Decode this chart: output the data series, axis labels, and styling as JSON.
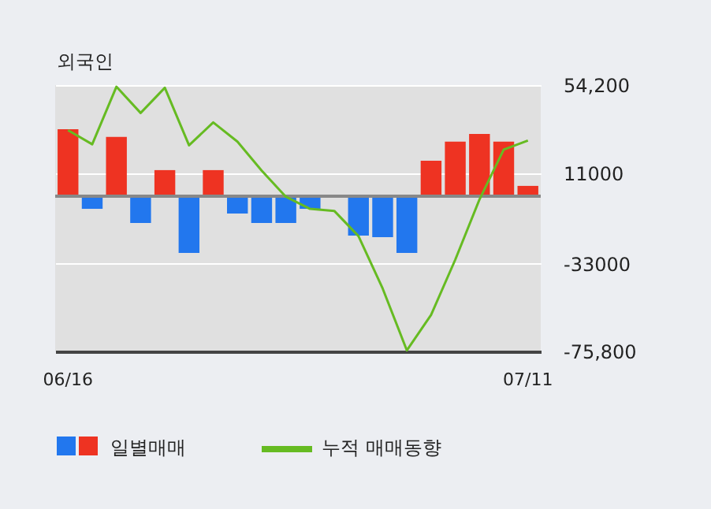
{
  "chart_data": {
    "type": "bar",
    "title": "외국인",
    "categories": [
      "06/16",
      null,
      null,
      null,
      null,
      null,
      null,
      null,
      null,
      null,
      null,
      null,
      null,
      null,
      null,
      null,
      null,
      null,
      null,
      "07/11"
    ],
    "series": [
      {
        "name": "일별매매",
        "colors": [
          "#ee3322",
          "#2277ee",
          "#ee3322",
          "#2277ee",
          "#ee3322",
          "#2277ee",
          "#ee3322",
          "#2277ee",
          "#2277ee",
          "#2277ee",
          "#2277ee",
          "#2277ee",
          "#2277ee",
          "#2277ee",
          "#2277ee",
          "#ee3322",
          "#ee3322",
          "#ee3322",
          "#ee3322",
          "#ee3322"
        ],
        "values": [
          32700,
          -6200,
          28900,
          -13100,
          12700,
          -27700,
          12700,
          -8500,
          -13100,
          -13100,
          -6200,
          null,
          -19300,
          -20000,
          -27700,
          17300,
          26600,
          30400,
          26600,
          5000
        ]
      },
      {
        "name": "누적 매매동향",
        "type": "line",
        "color": "#66bb22",
        "values": [
          32200,
          25300,
          53400,
          40600,
          52900,
          24800,
          36000,
          26600,
          12500,
          -300,
          -6200,
          -7200,
          -19500,
          -45100,
          -75300,
          -58000,
          -31000,
          -1600,
          22700,
          27100
        ]
      }
    ],
    "ylim": [
      -75800,
      54200
    ],
    "yticks": [
      {
        "value": 54200,
        "label": "54,200"
      },
      11000,
      -33000,
      {
        "value": -75800,
        "label": "-75,800"
      }
    ],
    "ref_lines": [
      {
        "axis": "y",
        "value": 0,
        "color": "#888888"
      }
    ],
    "grid": "y",
    "legend": "bottom"
  }
}
